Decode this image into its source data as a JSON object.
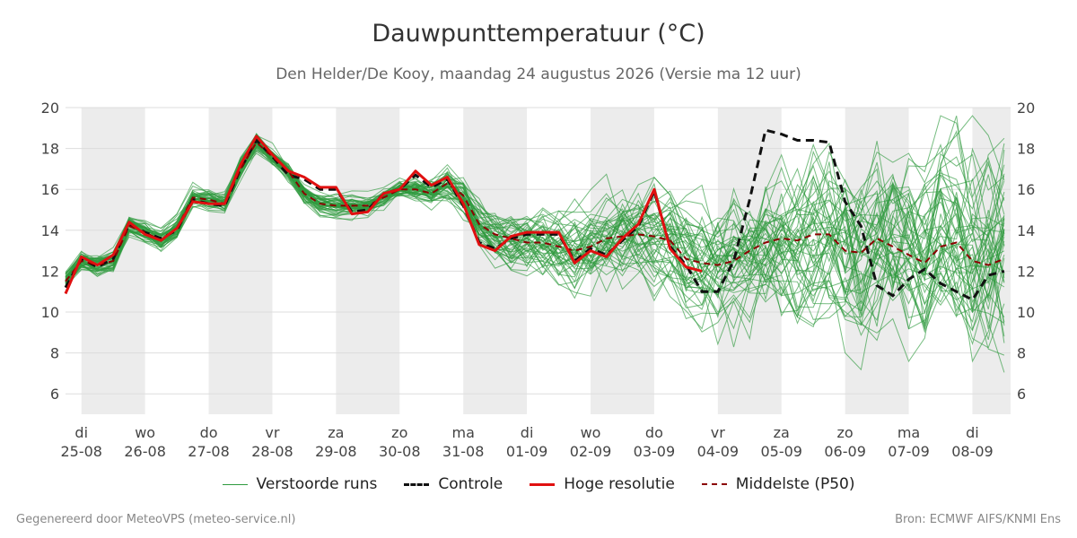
{
  "title": "Dauwpunttemperatuur (°C)",
  "subtitle": "Den Helder/De Kooy, maandag 24 augustus 2026 (Versie ma 12 uur)",
  "footer": {
    "left": "Gegenereerd door MeteoVPS (meteo-service.nl)",
    "right": "Bron: ECMWF AIFS/KNMI Ens"
  },
  "colors": {
    "ensemble": "#2e9a3e",
    "control": "#111111",
    "hires": "#e01010",
    "median": "#8b0000",
    "shade": "#ececec",
    "grid": "#dddddd"
  },
  "chart_data": {
    "type": "line",
    "title": "Dauwpunttemperatuur (°C)",
    "ylim": [
      5,
      20
    ],
    "yticks": [
      6,
      8,
      10,
      12,
      14,
      16,
      18,
      20
    ],
    "xlim": [
      -0.25,
      14.6
    ],
    "grid": true,
    "legend_position": "bottom",
    "x_unit": "days since 25-08 00:00",
    "categories": [
      {
        "day": "di",
        "date": "25-08"
      },
      {
        "day": "wo",
        "date": "26-08"
      },
      {
        "day": "do",
        "date": "27-08"
      },
      {
        "day": "vr",
        "date": "28-08"
      },
      {
        "day": "za",
        "date": "29-08"
      },
      {
        "day": "zo",
        "date": "30-08"
      },
      {
        "day": "ma",
        "date": "31-08"
      },
      {
        "day": "di",
        "date": "01-09"
      },
      {
        "day": "wo",
        "date": "02-09"
      },
      {
        "day": "do",
        "date": "03-09"
      },
      {
        "day": "vr",
        "date": "04-09"
      },
      {
        "day": "za",
        "date": "05-09"
      },
      {
        "day": "zo",
        "date": "06-09"
      },
      {
        "day": "ma",
        "date": "07-09"
      },
      {
        "day": "di",
        "date": "08-09"
      }
    ],
    "legend": {
      "ensemble": "Verstoorde runs",
      "control": "Controle",
      "hires": "Hoge resolutie",
      "median": "Middelste (P50)"
    },
    "hires": {
      "x": [
        -0.25,
        0,
        0.25,
        0.5,
        0.75,
        1,
        1.25,
        1.5,
        1.75,
        2,
        2.25,
        2.5,
        2.75,
        3,
        3.25,
        3.5,
        3.75,
        4,
        4.25,
        4.5,
        4.75,
        5,
        5.25,
        5.5,
        5.75,
        6,
        6.25,
        6.5,
        6.75,
        7,
        7.25,
        7.5,
        7.75,
        8,
        8.25,
        8.5,
        8.75,
        9,
        9.25,
        9.5,
        9.75
      ],
      "y": [
        10.9,
        12.7,
        12.3,
        12.8,
        14.4,
        13.8,
        13.5,
        14.1,
        15.4,
        15.3,
        15.3,
        17.2,
        18.6,
        17.7,
        16.9,
        16.6,
        16.1,
        16.1,
        14.8,
        14.9,
        15.8,
        16.0,
        16.9,
        16.2,
        16.6,
        15.3,
        13.3,
        13.0,
        13.7,
        13.9,
        13.9,
        13.9,
        12.4,
        13.0,
        12.7,
        13.6,
        14.3,
        16.0,
        13.1,
        12.2,
        12.0
      ]
    },
    "control": {
      "x": [
        -0.25,
        0,
        0.25,
        0.5,
        0.75,
        1,
        1.25,
        1.5,
        1.75,
        2,
        2.25,
        2.5,
        2.75,
        3,
        3.25,
        3.5,
        3.75,
        4,
        4.25,
        4.5,
        4.75,
        5,
        5.25,
        5.5,
        5.75,
        6,
        6.25,
        6.5,
        6.75,
        7,
        7.25,
        7.5,
        7.75,
        8,
        8.25,
        8.5,
        8.75,
        9,
        9.25,
        9.5,
        9.75,
        10,
        10.25,
        10.5,
        10.75,
        11,
        11.25,
        11.5,
        11.75,
        12,
        12.25,
        12.5,
        12.75,
        13,
        13.25,
        13.5,
        13.75,
        14,
        14.25,
        14.5
      ],
      "y": [
        11.2,
        12.6,
        12.2,
        12.6,
        14.3,
        13.9,
        13.6,
        14.0,
        15.5,
        15.3,
        15.2,
        17.0,
        18.4,
        17.6,
        16.7,
        16.5,
        16.0,
        16.0,
        14.9,
        15.0,
        15.8,
        16.0,
        16.7,
        16.1,
        16.5,
        15.2,
        13.4,
        13.1,
        13.6,
        13.8,
        13.8,
        13.8,
        12.5,
        13.1,
        12.8,
        13.5,
        14.2,
        15.9,
        13.2,
        12.3,
        11.0,
        11.0,
        12.5,
        15.5,
        18.9,
        18.7,
        18.4,
        18.4,
        18.3,
        15.4,
        14.2,
        11.3,
        10.8,
        11.6,
        12.1,
        11.4,
        11.0,
        10.6,
        11.8,
        12.0
      ]
    },
    "median": {
      "x": [
        -0.25,
        0,
        0.25,
        0.5,
        0.75,
        1,
        1.25,
        1.5,
        1.75,
        2,
        2.25,
        2.5,
        2.75,
        3,
        3.25,
        3.5,
        3.75,
        4,
        4.25,
        4.5,
        4.75,
        5,
        5.25,
        5.5,
        5.75,
        6,
        6.25,
        6.5,
        6.75,
        7,
        7.25,
        7.5,
        7.75,
        8,
        8.25,
        8.5,
        8.75,
        9,
        9.25,
        9.5,
        9.75,
        10,
        10.25,
        10.5,
        10.75,
        11,
        11.25,
        11.5,
        11.75,
        12,
        12.25,
        12.5,
        12.75,
        13,
        13.25,
        13.5,
        13.75,
        14,
        14.25,
        14.5
      ],
      "y": [
        11.5,
        12.5,
        12.3,
        12.5,
        14.2,
        13.9,
        13.5,
        14.1,
        15.6,
        15.5,
        15.3,
        17.0,
        18.3,
        17.6,
        16.9,
        15.8,
        15.3,
        15.2,
        15.2,
        15.2,
        15.6,
        16.0,
        16.0,
        15.8,
        16.3,
        15.7,
        14.3,
        13.8,
        13.6,
        13.4,
        13.4,
        13.2,
        13.0,
        13.2,
        13.6,
        13.7,
        13.8,
        13.7,
        13.5,
        12.6,
        12.4,
        12.3,
        12.5,
        13.0,
        13.4,
        13.6,
        13.5,
        13.8,
        13.8,
        13.0,
        12.9,
        13.6,
        13.2,
        12.8,
        12.4,
        13.2,
        13.4,
        12.5,
        12.3,
        12.6
      ]
    }
  }
}
